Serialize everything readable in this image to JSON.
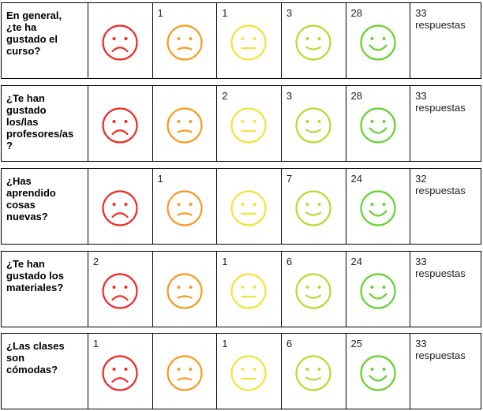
{
  "colors": {
    "face_1": "#ef2b23",
    "face_2": "#f89b22",
    "face_3": "#f3e33a",
    "face_4": "#b9d933",
    "face_5": "#65d131",
    "border": "#000000"
  },
  "faces": [
    {
      "icon": "very-sad-face-icon",
      "mood": "very-unhappy"
    },
    {
      "icon": "sad-face-icon",
      "mood": "unhappy"
    },
    {
      "icon": "neutral-face-icon",
      "mood": "neutral"
    },
    {
      "icon": "happy-face-icon",
      "mood": "happy"
    },
    {
      "icon": "very-happy-face-icon",
      "mood": "very-happy"
    }
  ],
  "questions": [
    {
      "question": "En general,\n¿te ha\ngustado el\ncurso?",
      "counts": [
        "",
        "1",
        "1",
        "3",
        "28"
      ],
      "total": "33\nrespuestas"
    },
    {
      "question": "¿Te han\ngustado\nlos/las\nprofesores/as\n?",
      "counts": [
        "",
        "",
        "2",
        "3",
        "28"
      ],
      "total": "33\nrespuestas"
    },
    {
      "question": "¿Has\naprendido\ncosas\nnuevas?",
      "counts": [
        "",
        "1",
        "",
        "7",
        "24"
      ],
      "total": "32\nrespuestas"
    },
    {
      "question": "¿Te han\ngustado los\nmateriales?",
      "counts": [
        "2",
        "",
        "1",
        "6",
        "24"
      ],
      "total": "33\nrespuestas"
    },
    {
      "question": "¿Las clases\nson\ncómodas?",
      "counts": [
        "1",
        "",
        "1",
        "6",
        "25"
      ],
      "total": "33\nrespuestas"
    }
  ]
}
